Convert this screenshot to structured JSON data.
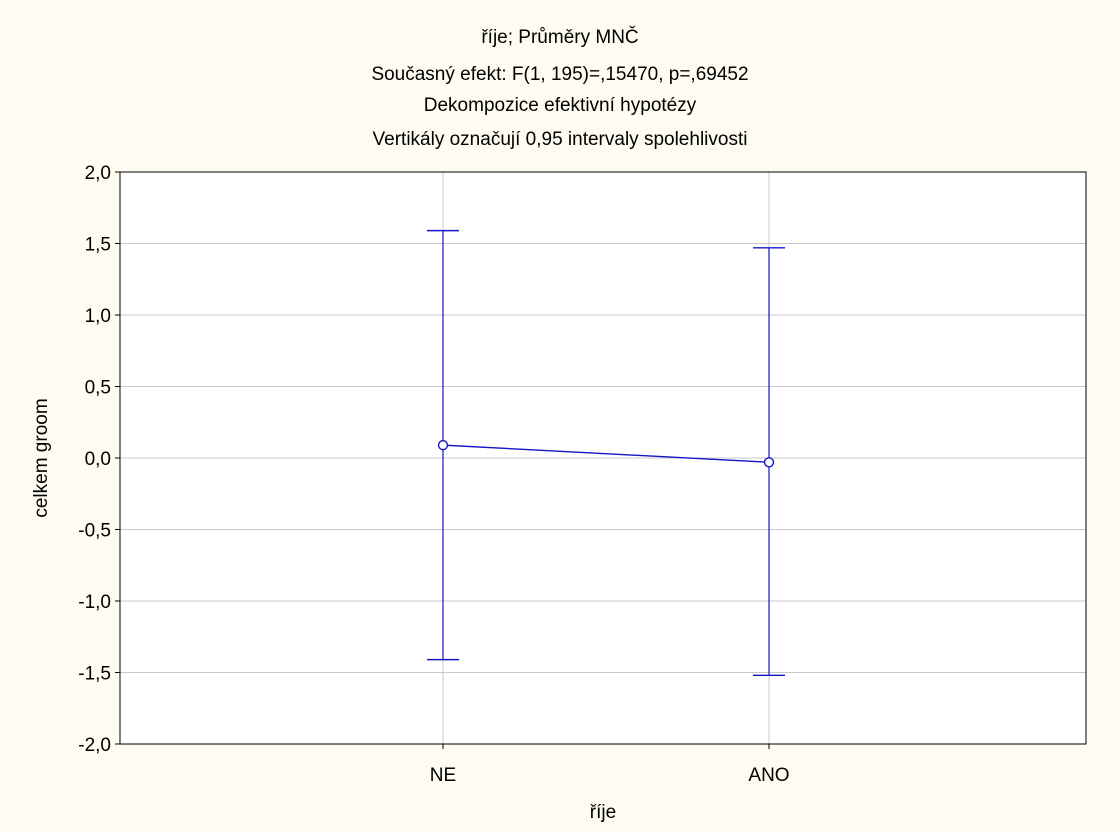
{
  "chart_data": {
    "type": "line",
    "title_lines": [
      "říje; Průměry MNČ",
      "Současný efekt: F(1, 195)=,15470, p=,69452",
      "Dekompozice efektivní hypotézy",
      "Vertikály označují 0,95 intervaly spolehlivosti"
    ],
    "xlabel": "říje",
    "ylabel": "celkem groom",
    "categories": [
      "NE",
      "ANO"
    ],
    "series": [
      {
        "values": [
          0.09,
          -0.03
        ],
        "ci_lower": [
          -1.41,
          -1.52
        ],
        "ci_upper": [
          1.59,
          1.47
        ]
      }
    ],
    "ylim": [
      -2.0,
      2.0
    ],
    "yticks": [
      2.0,
      1.5,
      1.0,
      0.5,
      0.0,
      -0.5,
      -1.0,
      -1.5,
      -2.0
    ],
    "ytick_labels": [
      "2,0",
      "1,5",
      "1,0",
      "0,5",
      "0,0",
      "-0,5",
      "-1,0",
      "-1,5",
      "-2,0"
    ],
    "grid": true,
    "colors": {
      "background": "#fefcf0",
      "plot_area": "#ffffff",
      "series": "#1414c8",
      "grid": "#c8c8c8"
    }
  }
}
